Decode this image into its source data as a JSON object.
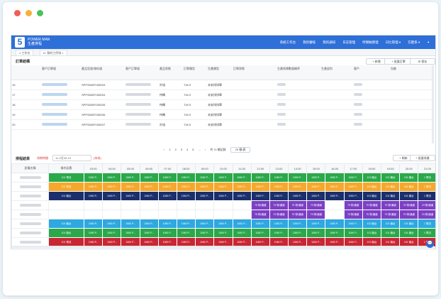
{
  "window": {
    "dots": [
      "#f15e55",
      "#f5b13b",
      "#4bc25c"
    ]
  },
  "nav": {
    "logo_mark": "5",
    "logo_line1": "POWER MAN",
    "logo_line2": "生產排程",
    "menu": [
      "系統工作台",
      "我的審核",
      "我的通知",
      "日志管理",
      "時間輸營理",
      "日比管理 ▾",
      "在聽系 ▾"
    ]
  },
  "tabs": [
    "1 工作台",
    "IC 我的工序排 ×"
  ],
  "order_section": {
    "title": "訂單結構",
    "buttons": [
      "+ 新增",
      "+ 批量訂單",
      "⚙ 保存"
    ],
    "columns": [
      "",
      "",
      "",
      "客戶訂單號",
      "產品型號/物料號",
      "客戶訂單號",
      "產品狀態",
      "訂單類型",
      "生產類型",
      "訂單狀態",
      "生產保障數量機率",
      "生產部別",
      "客戶",
      "包裝"
    ],
    "rows": [
      {
        "no": "15",
        "code": "SPP3360F030D03",
        "status": "外協",
        "type": "T.M.S",
        "state": "未安排排單"
      },
      {
        "no": "17",
        "code": "SPP3360F030D04",
        "status": "待轉",
        "type": "T.M.S",
        "state": "未安排排單"
      },
      {
        "no": "18",
        "code": "SPP3360F030D05",
        "status": "待轉",
        "type": "T.M.S",
        "state": "未安排排單"
      },
      {
        "no": "19",
        "code": "SPP3360F030D06",
        "status": "待轉",
        "type": "T.M.S",
        "state": "未安排排單"
      },
      {
        "no": "20",
        "code": "SPP3360F030D07",
        "status": "外協",
        "type": "T.M.S",
        "state": "未安排排單"
      }
    ],
    "pager": [
      "‹",
      "1",
      "2",
      "3",
      "4",
      "5",
      "...",
      "›",
      "共 7x 條記錄",
      "20 條/頁"
    ]
  },
  "schedule_section": {
    "title": "排程結果",
    "date_label": "排期時間",
    "date_value": "11-2月49-10",
    "status_text": "(待排)",
    "buttons": [
      "+ 刷新",
      "+ 批量排產"
    ],
    "columns": [
      "設備名稱",
      "操作因素",
      "03:00",
      "04:00",
      "05:00",
      "06:00",
      "07:00",
      "08:00",
      "09:00",
      "10:00",
      "11:00",
      "12:00",
      "13:00",
      "14:00",
      "15:00",
      "16:00",
      "17:00",
      "18:00",
      "19:00",
      "20:00",
      "21:00"
    ],
    "rows": [
      {
        "color": "#2aa84a",
        "cells": [
          "101 電流",
          "1060 P...",
          "1060 P...",
          "1060 P...",
          "1060 P...",
          "1060 P...",
          "1060 P...",
          "1060 P...",
          "1060 P...",
          "1060 P...",
          "1060 P...",
          "1060 P...",
          "1060 P...",
          "1060 P...",
          "1060 P...",
          "1060 P...",
          "101 機台",
          "101 機台",
          "101 機台",
          "1 電流"
        ]
      },
      {
        "color": "#f6a82b",
        "cells": [
          "101 電流",
          "1060 P...",
          "1060 P...",
          "1060 P...",
          "1060 P...",
          "1060 P...",
          "1060 P...",
          "1060 P...",
          "1060 P...",
          "1060 P...",
          "1060 P...",
          "1060 P...",
          "1060 P...",
          "1060 P...",
          "1060 P...",
          "1060 P...",
          "101 機台",
          "101 機台",
          "101 機台",
          "1 電流"
        ]
      },
      {
        "color": "#1a2f6b",
        "cells": [
          "101 機台",
          "1060 P...",
          "1060 P...",
          "1060 P...",
          "1060 P...",
          "1060 P...",
          "1060 P...",
          "1060 P...",
          "1060 P...",
          "1060 P...",
          "1060 P...",
          "1060 P...",
          "1060 P...",
          "1060 P...",
          "1060 P...",
          "1060 P...",
          "101 機台",
          "101 機台",
          "101 機台",
          "1 電流"
        ]
      },
      {
        "color": "#7c3fc4",
        "cells": [
          "",
          "",
          "",
          "",
          "",
          "",
          "",
          "",
          "",
          "",
          "75 物/通道",
          "75 物/通道",
          "75 物/通道",
          "75 物/通道",
          "",
          "75 物/通道",
          "75 物/通道",
          "75 物/通道",
          "75 物/通道",
          "23 物/通道"
        ]
      },
      {
        "color": "#7c3fc4",
        "cells": [
          "",
          "",
          "",
          "",
          "",
          "",
          "",
          "",
          "",
          "",
          "75 物/通道",
          "75 物/通道",
          "75 物/通道",
          "75 物/通道",
          "",
          "75 物/通道",
          "75 物/通道",
          "75 物/通道",
          "75 物/通道",
          "23 物/通道"
        ]
      },
      {
        "color": "#2ea8e0",
        "cells": [
          "101 機台",
          "1060 P...",
          "1060 P...",
          "1060 P...",
          "1060 P...",
          "1060 P...",
          "1060 P...",
          "1060 P...",
          "1060 P...",
          "1060 P...",
          "1060 P...",
          "1060 P...",
          "1060 P...",
          "1060 P...",
          "1060 P...",
          "1060 P...",
          "101 機台",
          "101 機台",
          "101 機台",
          "1 電流"
        ]
      },
      {
        "color": "#2aa84a",
        "cells": [
          "101 機台",
          "1060 P...",
          "1060 P...",
          "1060 P...",
          "1060 P...",
          "1060 P...",
          "1060 P...",
          "1060 P...",
          "1060 P...",
          "1060 P...",
          "1060 P...",
          "1060 P...",
          "1060 P...",
          "1060 P...",
          "1060 P...",
          "1060 P...",
          "101 機台",
          "101 機台",
          "101 機台",
          "1 電流"
        ]
      },
      {
        "color": "#c92634",
        "cells": [
          "101 電流",
          "1060 P...",
          "1060 P...",
          "1060 P...",
          "1060 P...",
          "1060 P...",
          "1060 P...",
          "1060 P...",
          "1060 P...",
          "1060 P...",
          "1060 P...",
          "1060 P...",
          "1060 P...",
          "1060 P...",
          "1060 P...",
          "1060 P...",
          "101 機台",
          "101 機台",
          "101 機台",
          "1 電流"
        ]
      }
    ]
  }
}
